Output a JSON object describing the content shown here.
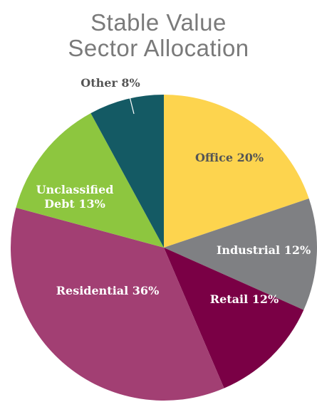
{
  "chart_data": {
    "type": "pie",
    "title": [
      "Stable Value",
      "Sector Allocation"
    ],
    "categories": [
      "Office",
      "Industrial",
      "Retail",
      "Residential",
      "Unclassified Debt",
      "Other"
    ],
    "values": [
      20,
      12,
      12,
      36,
      13,
      8
    ],
    "value_labels": [
      "20%",
      "12%",
      "12%",
      "36%",
      "13%",
      "8%"
    ],
    "colors": [
      "#fdd44e",
      "#7f8083",
      "#7a0045",
      "#a23f73",
      "#8dc63f",
      "#145a64"
    ]
  }
}
